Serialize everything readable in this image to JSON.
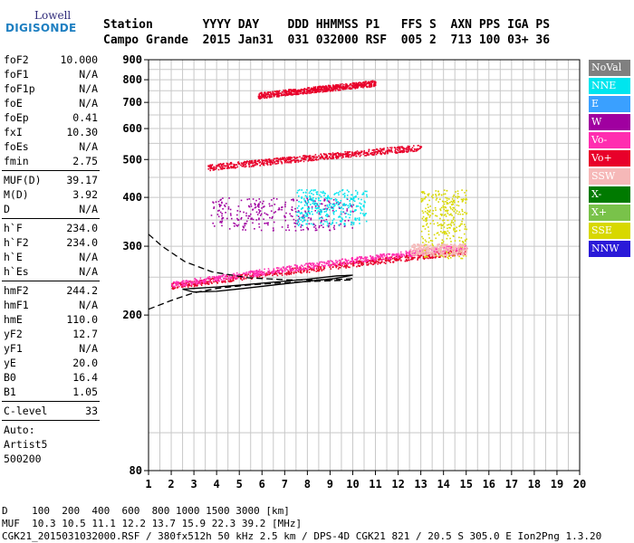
{
  "logo": {
    "line1": "Lowell",
    "line2": "DIGISONDE"
  },
  "header": {
    "row1": "Station       YYYY DAY    DDD HHMMSS P1   FFS S  AXN PPS IGA PS",
    "row2": "Campo Grande  2015 Jan31  031 032000 RSF  005 2  713 100 03+ 36"
  },
  "params": [
    {
      "name": "foF2",
      "value": "10.000"
    },
    {
      "name": "foF1",
      "value": "N/A"
    },
    {
      "name": "foF1p",
      "value": "N/A"
    },
    {
      "name": "foE",
      "value": "N/A"
    },
    {
      "name": "foEp",
      "value": "0.41"
    },
    {
      "name": "fxI",
      "value": "10.30"
    },
    {
      "name": "foEs",
      "value": "N/A"
    },
    {
      "name": "fmin",
      "value": "2.75"
    },
    {
      "sep": true
    },
    {
      "name": "MUF(D)",
      "value": "39.17"
    },
    {
      "name": "M(D)",
      "value": "3.92"
    },
    {
      "name": "D",
      "value": "N/A"
    },
    {
      "sep": true
    },
    {
      "name": "h`F",
      "value": "234.0"
    },
    {
      "name": "h`F2",
      "value": "234.0"
    },
    {
      "name": "h`E",
      "value": "N/A"
    },
    {
      "name": "h`Es",
      "value": "N/A"
    },
    {
      "sep": true
    },
    {
      "name": "hmF2",
      "value": "244.2"
    },
    {
      "name": "hmF1",
      "value": "N/A"
    },
    {
      "name": "hmE",
      "value": "110.0"
    },
    {
      "name": "yF2",
      "value": "12.7"
    },
    {
      "name": "yF1",
      "value": "N/A"
    },
    {
      "name": "yE",
      "value": "20.0"
    },
    {
      "name": "B0",
      "value": "16.4"
    },
    {
      "name": "B1",
      "value": "1.05"
    },
    {
      "sep": true
    },
    {
      "name": "C-level",
      "value": "33"
    },
    {
      "sep": true
    },
    {
      "text": "Auto:"
    },
    {
      "text": "Artist5"
    },
    {
      "text": "500200"
    }
  ],
  "legend": [
    {
      "label": "NoVal",
      "color": "#808080"
    },
    {
      "label": "NNE",
      "color": "#00e5ee"
    },
    {
      "label": "E",
      "color": "#3aa0ff"
    },
    {
      "label": "W",
      "color": "#a000a0"
    },
    {
      "label": "Vo-",
      "color": "#ff2db0"
    },
    {
      "label": "Vo+",
      "color": "#e8002a"
    },
    {
      "label": "SSW",
      "color": "#f6b8b8"
    },
    {
      "label": "X-",
      "color": "#007a00"
    },
    {
      "label": "X+",
      "color": "#79c24a"
    },
    {
      "label": "SSE",
      "color": "#d8d800"
    },
    {
      "label": "NNW",
      "color": "#2a1ad8"
    }
  ],
  "bottom": {
    "d_row": "D    100  200  400  600  800 1000 1500 3000 [km]",
    "muf_row": "MUF  10.3 10.5 11.1 12.2 13.7 15.9 22.3 39.2 [MHz]",
    "file_row": "CGK21_2015031032000.RSF / 380fx512h 50 kHz 2.5 km / DPS-4D CGK21 821 / 20.5 S 305.0 E Ion2Png 1.3.20"
  },
  "chart_data": {
    "type": "scatter",
    "xlim": [
      1,
      20
    ],
    "x_scale": "linear",
    "y_scale": "log",
    "ylim": [
      80,
      900
    ],
    "x_ticks": [
      1,
      2,
      3,
      4,
      5,
      6,
      7,
      8,
      9,
      10,
      11,
      12,
      13,
      14,
      15,
      16,
      17,
      18,
      19,
      20
    ],
    "y_ticks": [
      80,
      200,
      300,
      400,
      500,
      600,
      700,
      800,
      900
    ],
    "grid": true,
    "traces": [
      {
        "series": "Vo+",
        "color": "#e8002a",
        "x_range": [
          2.0,
          15.0
        ],
        "y_range": [
          238,
          292
        ],
        "kind": "band"
      },
      {
        "series": "Vo-",
        "color": "#ff2db0",
        "x_range": [
          2.0,
          15.0
        ],
        "y_range": [
          240,
          300
        ],
        "kind": "band"
      },
      {
        "series": "Vo+",
        "color": "#e8002a",
        "x_range": [
          3.6,
          13.0
        ],
        "y_range": [
          478,
          538
        ],
        "kind": "band"
      },
      {
        "series": "Vo+",
        "color": "#e8002a",
        "x_range": [
          5.8,
          11.0
        ],
        "y_range": [
          730,
          786
        ],
        "kind": "band"
      },
      {
        "series": "W",
        "color": "#a000a0",
        "x_range": [
          3.7,
          10.0
        ],
        "y_range": [
          330,
          400
        ],
        "kind": "cluster"
      },
      {
        "series": "NNE",
        "color": "#00e5ee",
        "x_range": [
          7.5,
          10.6
        ],
        "y_range": [
          340,
          420
        ],
        "kind": "cluster"
      },
      {
        "series": "SSE",
        "color": "#d8d800",
        "x_range": [
          13.0,
          15.0
        ],
        "y_range": [
          280,
          420
        ],
        "kind": "cluster"
      },
      {
        "series": "SSW",
        "color": "#f6b8b8",
        "x_range": [
          12.5,
          15.0
        ],
        "y_range": [
          285,
          305
        ],
        "kind": "cluster"
      }
    ],
    "profile_curves": [
      {
        "style": "dashed",
        "points": [
          [
            1.0,
            322
          ],
          [
            1.6,
            300
          ],
          [
            2.6,
            274
          ],
          [
            3.8,
            258
          ],
          [
            5.4,
            249
          ],
          [
            7.2,
            246
          ],
          [
            9.0,
            246
          ],
          [
            10.0,
            248
          ]
        ]
      },
      {
        "style": "dashed",
        "points": [
          [
            1.0,
            207
          ],
          [
            2.0,
            218
          ],
          [
            3.0,
            228
          ],
          [
            4.0,
            234
          ],
          [
            5.5,
            239
          ],
          [
            7.5,
            243
          ],
          [
            10.0,
            246
          ]
        ]
      },
      {
        "style": "solid",
        "points": [
          [
            3.0,
            234
          ],
          [
            4.0,
            236
          ],
          [
            5.2,
            239
          ],
          [
            6.6,
            243
          ],
          [
            8.0,
            247
          ],
          [
            9.3,
            252
          ],
          [
            10.0,
            253
          ],
          [
            9.2,
            248
          ],
          [
            8.0,
            244
          ],
          [
            6.6,
            239
          ],
          [
            5.2,
            234
          ],
          [
            4.0,
            230
          ],
          [
            3.0,
            229
          ],
          [
            2.5,
            233
          ],
          [
            3.0,
            234
          ]
        ]
      }
    ]
  }
}
